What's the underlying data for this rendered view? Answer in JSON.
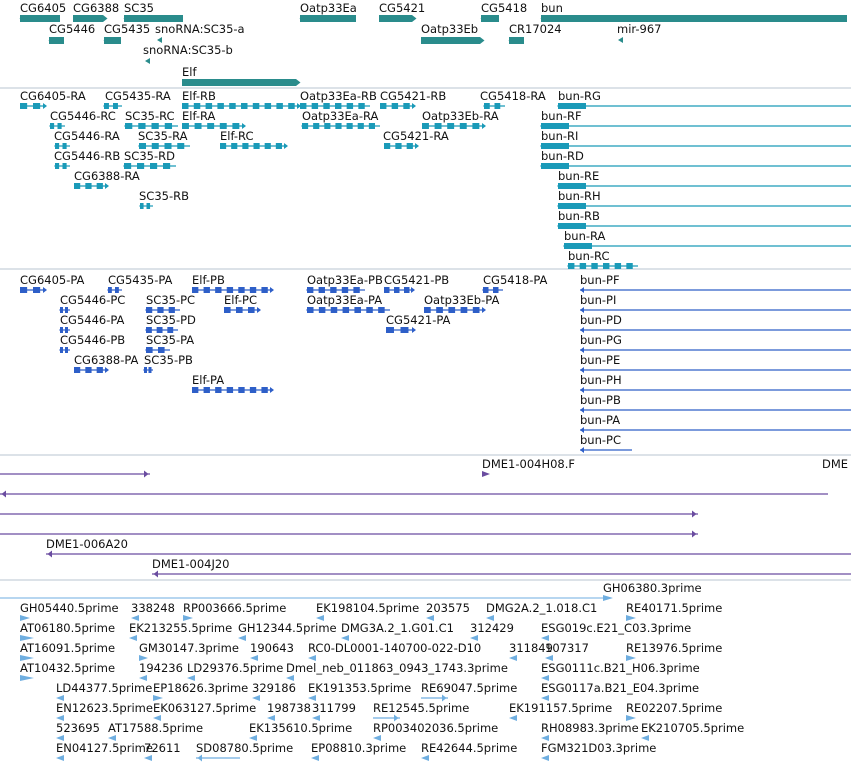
{
  "colors": {
    "gene": "#2a8c8c",
    "transcript": "#1a9ab8",
    "protein": "#2e5fc8",
    "clone": "#6a4ca0",
    "est": "#6faee0",
    "separator": "#b8c4d0"
  },
  "tracks": [
    {
      "name": "gene-track",
      "color": "#2a8c8c",
      "features": [
        {
          "id": "gene-cg6405",
          "label": "CG6405"
        },
        {
          "id": "gene-cg6388",
          "label": "CG6388"
        },
        {
          "id": "gene-sc35",
          "label": "SC35"
        },
        {
          "id": "gene-oatp33ea",
          "label": "Oatp33Ea"
        },
        {
          "id": "gene-cg5421",
          "label": "CG5421"
        },
        {
          "id": "gene-cg5418",
          "label": "CG5418"
        },
        {
          "id": "gene-bun",
          "label": "bun"
        },
        {
          "id": "gene-cg5446",
          "label": "CG5446"
        },
        {
          "id": "gene-cg5435",
          "label": "CG5435"
        },
        {
          "id": "gene-snorna-sc35-a",
          "label": "snoRNA:SC35-a"
        },
        {
          "id": "gene-oatp33eb",
          "label": "Oatp33Eb"
        },
        {
          "id": "gene-cr17024",
          "label": "CR17024"
        },
        {
          "id": "gene-mir967",
          "label": "mir-967"
        },
        {
          "id": "gene-snorna-sc35-b",
          "label": "snoRNA:SC35-b"
        },
        {
          "id": "gene-elf",
          "label": "Elf"
        }
      ]
    },
    {
      "name": "transcript-track",
      "color": "#1a9ab8",
      "features": [
        {
          "id": "tx-cg6405-ra",
          "label": "CG6405-RA"
        },
        {
          "id": "tx-cg5435-ra",
          "label": "CG5435-RA"
        },
        {
          "id": "tx-elf-rb",
          "label": "Elf-RB"
        },
        {
          "id": "tx-oatp33ea-rb",
          "label": "Oatp33Ea-RB"
        },
        {
          "id": "tx-cg5421-rb",
          "label": "CG5421-RB"
        },
        {
          "id": "tx-cg5418-ra",
          "label": "CG5418-RA"
        },
        {
          "id": "tx-bun-rg",
          "label": "bun-RG"
        },
        {
          "id": "tx-cg5446-rc",
          "label": "CG5446-RC"
        },
        {
          "id": "tx-sc35-rc",
          "label": "SC35-RC"
        },
        {
          "id": "tx-elf-ra",
          "label": "Elf-RA"
        },
        {
          "id": "tx-oatp33ea-ra",
          "label": "Oatp33Ea-RA"
        },
        {
          "id": "tx-oatp33eb-ra",
          "label": "Oatp33Eb-RA"
        },
        {
          "id": "tx-bun-rf",
          "label": "bun-RF"
        },
        {
          "id": "tx-cg5446-ra",
          "label": "CG5446-RA"
        },
        {
          "id": "tx-sc35-ra",
          "label": "SC35-RA"
        },
        {
          "id": "tx-elf-rc",
          "label": "Elf-RC"
        },
        {
          "id": "tx-cg5421-ra",
          "label": "CG5421-RA"
        },
        {
          "id": "tx-bun-ri",
          "label": "bun-RI"
        },
        {
          "id": "tx-cg5446-rb",
          "label": "CG5446-RB"
        },
        {
          "id": "tx-sc35-rd",
          "label": "SC35-RD"
        },
        {
          "id": "tx-bun-rd",
          "label": "bun-RD"
        },
        {
          "id": "tx-cg6388-ra",
          "label": "CG6388-RA"
        },
        {
          "id": "tx-bun-re",
          "label": "bun-RE"
        },
        {
          "id": "tx-sc35-rb",
          "label": "SC35-RB"
        },
        {
          "id": "tx-bun-rh",
          "label": "bun-RH"
        },
        {
          "id": "tx-bun-rb",
          "label": "bun-RB"
        },
        {
          "id": "tx-bun-ra",
          "label": "bun-RA"
        },
        {
          "id": "tx-bun-rc",
          "label": "bun-RC"
        }
      ]
    },
    {
      "name": "protein-track",
      "color": "#2e5fc8",
      "features": [
        {
          "id": "pp-cg6405-pa",
          "label": "CG6405-PA"
        },
        {
          "id": "pp-cg5435-pa",
          "label": "CG5435-PA"
        },
        {
          "id": "pp-elf-pb",
          "label": "Elf-PB"
        },
        {
          "id": "pp-oatp33ea-pb",
          "label": "Oatp33Ea-PB"
        },
        {
          "id": "pp-cg5421-pb",
          "label": "CG5421-PB"
        },
        {
          "id": "pp-cg5418-pa",
          "label": "CG5418-PA"
        },
        {
          "id": "pp-bun-pf",
          "label": "bun-PF"
        },
        {
          "id": "pp-cg5446-pc",
          "label": "CG5446-PC"
        },
        {
          "id": "pp-sc35-pc",
          "label": "SC35-PC"
        },
        {
          "id": "pp-elf-pc",
          "label": "Elf-PC"
        },
        {
          "id": "pp-oatp33ea-pa",
          "label": "Oatp33Ea-PA"
        },
        {
          "id": "pp-oatp33eb-pa",
          "label": "Oatp33Eb-PA"
        },
        {
          "id": "pp-bun-pi",
          "label": "bun-PI"
        },
        {
          "id": "pp-cg5446-pa",
          "label": "CG5446-PA"
        },
        {
          "id": "pp-sc35-pd",
          "label": "SC35-PD"
        },
        {
          "id": "pp-cg5421-pa",
          "label": "CG5421-PA"
        },
        {
          "id": "pp-bun-pd",
          "label": "bun-PD"
        },
        {
          "id": "pp-cg5446-pb",
          "label": "CG5446-PB"
        },
        {
          "id": "pp-sc35-pa",
          "label": "SC35-PA"
        },
        {
          "id": "pp-bun-pg",
          "label": "bun-PG"
        },
        {
          "id": "pp-cg6388-pa",
          "label": "CG6388-PA"
        },
        {
          "id": "pp-sc35-pb",
          "label": "SC35-PB"
        },
        {
          "id": "pp-bun-pe",
          "label": "bun-PE"
        },
        {
          "id": "pp-elf-pa",
          "label": "Elf-PA"
        },
        {
          "id": "pp-bun-ph",
          "label": "bun-PH"
        },
        {
          "id": "pp-bun-pb",
          "label": "bun-PB"
        },
        {
          "id": "pp-bun-pa",
          "label": "bun-PA"
        },
        {
          "id": "pp-bun-pc",
          "label": "bun-PC"
        }
      ]
    },
    {
      "name": "clone-track",
      "color": "#6a4ca0",
      "features": [
        {
          "id": "cl-dme1-004h08f",
          "label": "DME1-004H08.F"
        },
        {
          "id": "cl-dme-cut",
          "label": "DME"
        },
        {
          "id": "cl-dme1-006a20",
          "label": "DME1-006A20"
        },
        {
          "id": "cl-dme1-004j20",
          "label": "DME1-004J20"
        }
      ]
    },
    {
      "name": "est-track",
      "color": "#6faee0",
      "features": [
        {
          "id": "est-gh06380",
          "label": "GH06380.3prime"
        },
        {
          "id": "est-gh05440",
          "label": "GH05440.5prime"
        },
        {
          "id": "est-338248",
          "label": "338248"
        },
        {
          "id": "est-rp003666",
          "label": "RP003666.5prime"
        },
        {
          "id": "est-ek198104",
          "label": "EK198104.5prime"
        },
        {
          "id": "est-203575",
          "label": "203575"
        },
        {
          "id": "est-dmg2a",
          "label": "DMG2A.2_1.018.C1"
        },
        {
          "id": "est-re40171",
          "label": "RE40171.5prime"
        },
        {
          "id": "est-at06180",
          "label": "AT06180.5prime"
        },
        {
          "id": "est-ek213255",
          "label": "EK213255.5prime"
        },
        {
          "id": "est-gh12344",
          "label": "GH12344.5prime"
        },
        {
          "id": "est-dmg3a",
          "label": "DMG3A.2_1.G01.C1"
        },
        {
          "id": "est-312429",
          "label": "312429"
        },
        {
          "id": "est-esg019c",
          "label": "ESG019c.E21_C03.3prime"
        },
        {
          "id": "est-at16091",
          "label": "AT16091.5prime"
        },
        {
          "id": "est-gm30147",
          "label": "GM30147.3prime"
        },
        {
          "id": "est-190643",
          "label": "190643"
        },
        {
          "id": "est-rc0",
          "label": "RC0-DL0001-140700-022-D10"
        },
        {
          "id": "est-311849",
          "label": "311849"
        },
        {
          "id": "est-107317",
          "label": "107317"
        },
        {
          "id": "est-re13976",
          "label": "RE13976.5prime"
        },
        {
          "id": "est-at10432",
          "label": "AT10432.5prime"
        },
        {
          "id": "est-194236",
          "label": "194236"
        },
        {
          "id": "est-ld29376",
          "label": "LD29376.5prime"
        },
        {
          "id": "est-dmel-neb",
          "label": "Dmel_neb_011863_0943_1743.3prime"
        },
        {
          "id": "est-esg0111c",
          "label": "ESG0111c.B21_H06.3prime"
        },
        {
          "id": "est-ld44377",
          "label": "LD44377.5prime"
        },
        {
          "id": "est-ep18626",
          "label": "EP18626.3prime"
        },
        {
          "id": "est-329186",
          "label": "329186"
        },
        {
          "id": "est-ek191353",
          "label": "EK191353.5prime"
        },
        {
          "id": "est-re69047",
          "label": "RE69047.5prime"
        },
        {
          "id": "est-esg0117a",
          "label": "ESG0117a.B21_E04.3prime"
        },
        {
          "id": "est-en12623",
          "label": "EN12623.5prime"
        },
        {
          "id": "est-ek063127",
          "label": "EK063127.5prime"
        },
        {
          "id": "est-198738",
          "label": "198738"
        },
        {
          "id": "est-311799",
          "label": "311799"
        },
        {
          "id": "est-re12545",
          "label": "RE12545.5prime"
        },
        {
          "id": "est-ek191157",
          "label": "EK191157.5prime"
        },
        {
          "id": "est-re02207",
          "label": "RE02207.5prime"
        },
        {
          "id": "est-523695",
          "label": "523695"
        },
        {
          "id": "est-at17588",
          "label": "AT17588.5prime"
        },
        {
          "id": "est-ek135610",
          "label": "EK135610.5prime"
        },
        {
          "id": "est-rp003402",
          "label": "RP003402036.5prime"
        },
        {
          "id": "est-rh08983",
          "label": "RH08983.3prime"
        },
        {
          "id": "est-ek210705",
          "label": "EK210705.5prime"
        },
        {
          "id": "est-en04127",
          "label": "EN04127.5prime"
        },
        {
          "id": "est-72611",
          "label": "72611"
        },
        {
          "id": "est-sd08780",
          "label": "SD08780.5prime"
        },
        {
          "id": "est-ep08810",
          "label": "EP08810.3prime"
        },
        {
          "id": "est-re42644",
          "label": "RE42644.5prime"
        },
        {
          "id": "est-fgm321d03",
          "label": "FGM321D03.3prime"
        }
      ]
    }
  ]
}
